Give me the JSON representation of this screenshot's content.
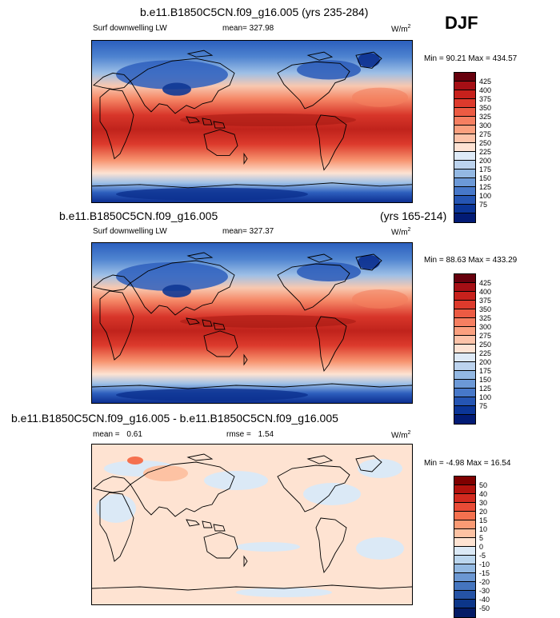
{
  "season": "DJF",
  "panels": [
    {
      "title": "b.e11.B1850C5CN.f09_g16.005 (yrs 235-284)",
      "title_right": "",
      "variable": "Surf downwelling LW",
      "stat_label": "mean=",
      "stat_value": "327.98",
      "rmse_label": "",
      "rmse_value": "",
      "units": "W/m",
      "units_exp": "2",
      "minmax": "Min =  90.21 Max = 434.57",
      "colorbar": {
        "colors": [
          "#67000d",
          "#a50f15",
          "#c7211c",
          "#dd3a2c",
          "#ec5b43",
          "#f67f61",
          "#fba07f",
          "#fdc3a9",
          "#fee3d4",
          "#deeaf7",
          "#bcd3ee",
          "#93b8e3",
          "#6c99d7",
          "#4778c9",
          "#2555b3",
          "#0b3597",
          "#021b75"
        ],
        "labels": [
          "425",
          "400",
          "375",
          "350",
          "325",
          "300",
          "275",
          "250",
          "225",
          "200",
          "175",
          "150",
          "125",
          "100",
          "75"
        ]
      }
    },
    {
      "title": "b.e11.B1850C5CN.f09_g16.005",
      "title_right": "(yrs 165-214)",
      "variable": "Surf downwelling LW",
      "stat_label": "mean=",
      "stat_value": "327.37",
      "rmse_label": "",
      "rmse_value": "",
      "units": "W/m",
      "units_exp": "2",
      "minmax": "Min =  88.63 Max = 433.29",
      "colorbar": {
        "colors": [
          "#67000d",
          "#a50f15",
          "#c7211c",
          "#dd3a2c",
          "#ec5b43",
          "#f67f61",
          "#fba07f",
          "#fdc3a9",
          "#fee3d4",
          "#deeaf7",
          "#bcd3ee",
          "#93b8e3",
          "#6c99d7",
          "#4778c9",
          "#2555b3",
          "#0b3597",
          "#021b75"
        ],
        "labels": [
          "425",
          "400",
          "375",
          "350",
          "325",
          "300",
          "275",
          "250",
          "225",
          "200",
          "175",
          "150",
          "125",
          "100",
          "75"
        ]
      }
    },
    {
      "title": "b.e11.B1850C5CN.f09_g16.005 - b.e11.B1850C5CN.f09_g16.005",
      "title_right": "",
      "variable": "",
      "stat_label": "mean =",
      "stat_value": "0.61",
      "rmse_label": "rmse =",
      "rmse_value": "1.54",
      "units": "W/m",
      "units_exp": "2",
      "minmax": "Min =  -4.98 Max = 16.54",
      "colorbar": {
        "colors": [
          "#7f0000",
          "#b2120d",
          "#d32a1f",
          "#e94b36",
          "#f5714f",
          "#fa9a74",
          "#fdc2a3",
          "#fee3d2",
          "#dbe9f6",
          "#bbd6ee",
          "#93b9e2",
          "#6b97d2",
          "#4575bf",
          "#2553a6",
          "#0c3689",
          "#041b66"
        ],
        "labels": [
          "50",
          "40",
          "30",
          "20",
          "15",
          "10",
          "5",
          "0",
          "-5",
          "-10",
          "-15",
          "-20",
          "-30",
          "-40",
          "-50"
        ]
      }
    }
  ]
}
